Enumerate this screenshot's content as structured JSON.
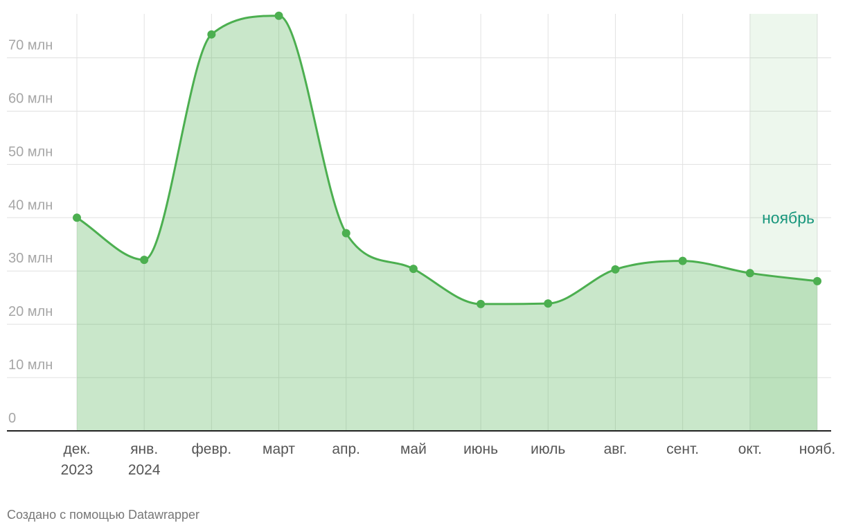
{
  "chart_data": {
    "type": "area",
    "categories": [
      "дек.\n2023",
      "янв.\n2024",
      "февр.",
      "март",
      "апр.",
      "май",
      "июнь",
      "июль",
      "авг.",
      "сент.",
      "окт.",
      "нояб."
    ],
    "series": [
      {
        "color": "#4caf50",
        "values": [
          40.0,
          32.1,
          74.4,
          77.9,
          37.1,
          30.4,
          23.8,
          23.9,
          30.3,
          31.9,
          29.6,
          28.1
        ]
      }
    ],
    "ylim": [
      0,
      78
    ],
    "yticks": [
      0,
      {
        "value": 10,
        "label": "10 млн"
      },
      {
        "value": 20,
        "label": "20 млн"
      },
      {
        "value": 30,
        "label": "30 млн"
      },
      {
        "value": 40,
        "label": "40 млн"
      },
      {
        "value": 50,
        "label": "50 млн"
      },
      {
        "value": 60,
        "label": "60 млн"
      },
      {
        "value": 70,
        "label": "70 млн"
      }
    ],
    "grid": true,
    "annotation": {
      "text": "ноябрь",
      "from": "окт.",
      "to": "нояб."
    },
    "footer": "Создано с помощью Datawrapper"
  }
}
